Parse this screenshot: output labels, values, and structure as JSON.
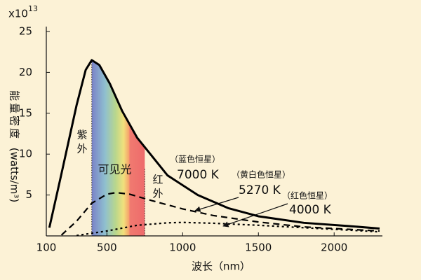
{
  "chart_data": {
    "type": "line",
    "y_multiplier": {
      "base": "x10",
      "exponent": "13"
    },
    "y_label": [
      "能量密度",
      "(watts/m³)"
    ],
    "x_label": "波长（nm）",
    "xlim": [
      100,
      2300
    ],
    "ylim": [
      0,
      25
    ],
    "xticks": [
      100,
      500,
      1000,
      1500,
      2000
    ],
    "yticks": [
      5,
      10,
      15,
      20,
      25
    ],
    "band": {
      "from": 400,
      "to": 750,
      "label": "可见光"
    },
    "annotations": {
      "uv": "紫外",
      "ir": "红外"
    },
    "series": [
      {
        "name": "7000 K",
        "note": "（蓝色恒星）",
        "color": "#000000",
        "style": "solid",
        "x": [
          120,
          200,
          300,
          360,
          400,
          450,
          520,
          600,
          700,
          900,
          1100,
          1300,
          1500,
          1800,
          2100,
          2300
        ],
        "values": [
          1.0,
          7.6,
          16,
          20.3,
          21.5,
          20.9,
          18.6,
          15.3,
          12,
          7.4,
          5,
          3.4,
          2.4,
          1.6,
          1.2,
          0.9
        ]
      },
      {
        "name": "5270 K",
        "note": "（黄白色恒星）",
        "color": "#000000",
        "style": "dashed",
        "x": [
          200,
          300,
          400,
          500,
          560,
          650,
          800,
          1000,
          1200,
          1500,
          1800,
          2100,
          2300
        ],
        "values": [
          0.1,
          1.8,
          4.0,
          5.1,
          5.3,
          5.1,
          4.3,
          3.3,
          2.5,
          1.7,
          1.1,
          0.8,
          0.6
        ]
      },
      {
        "name": "4000 K",
        "note": "（红色恒星）",
        "color": "#000000",
        "style": "dotted",
        "x": [
          300,
          500,
          700,
          900,
          1000,
          1200,
          1500,
          1800,
          2100,
          2300
        ],
        "values": [
          0.05,
          0.6,
          1.3,
          1.6,
          1.65,
          1.55,
          1.3,
          1.0,
          0.7,
          0.5
        ]
      }
    ]
  }
}
